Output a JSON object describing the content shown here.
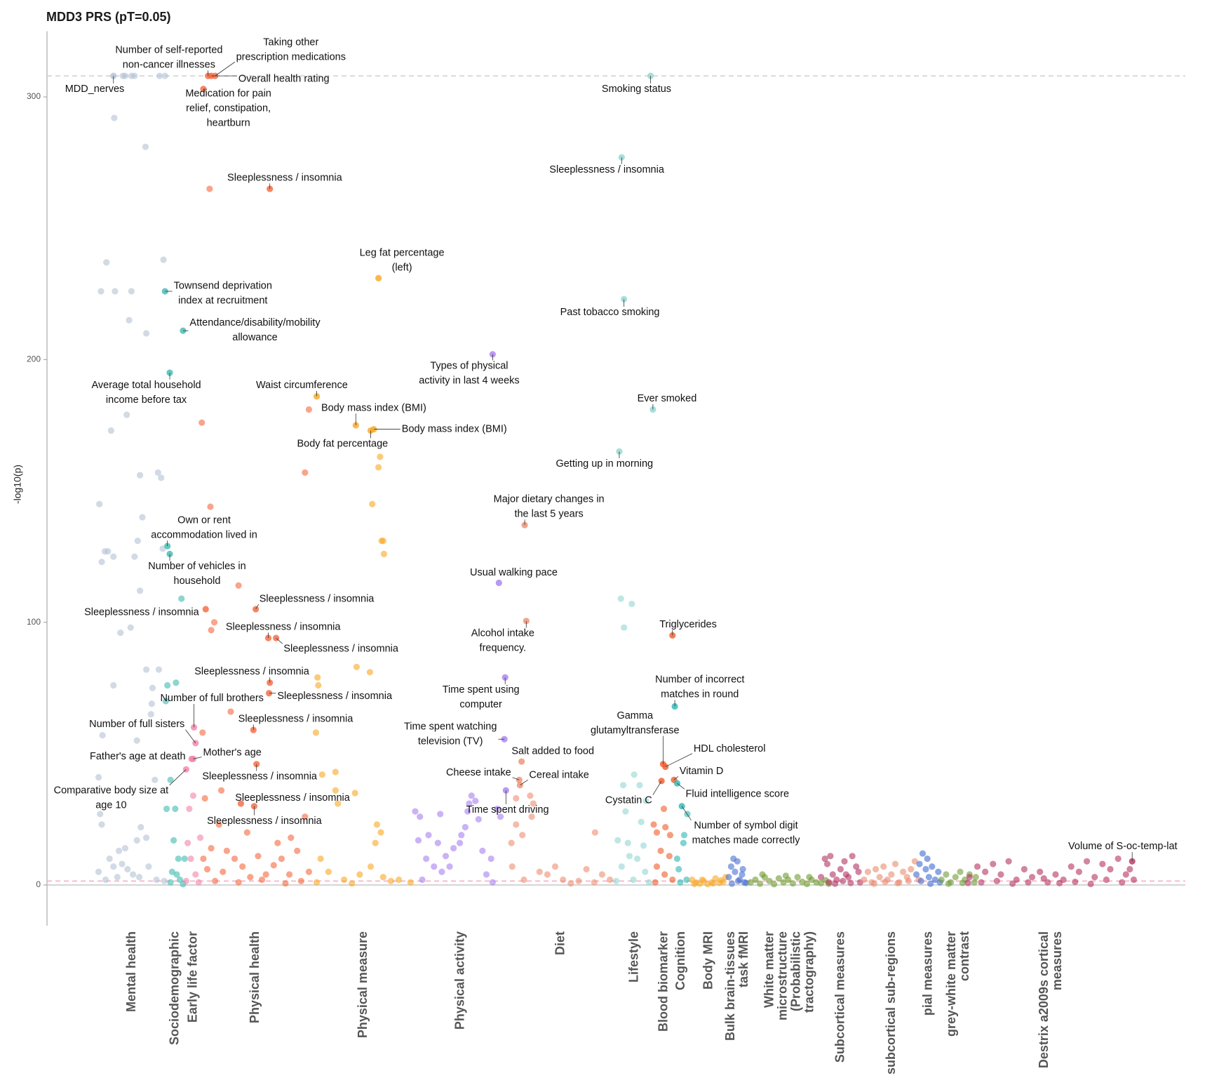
{
  "chart_data": {
    "type": "scatter",
    "title": "MDD3 PRS (pT=0.05)",
    "y_label": "-log10(p)",
    "xlim": [
      0,
      1456
    ],
    "ylim": [
      -15.5,
      325
    ],
    "yticks": [
      0,
      100,
      200,
      300
    ],
    "reference_lines": [
      {
        "value": 308,
        "color": "#cfcfcf",
        "style": "dashed"
      },
      {
        "value": 1.5,
        "color": "#f6a9c0",
        "style": "dashed"
      },
      {
        "value": 0,
        "color": "#bdbdbd",
        "style": "solid"
      }
    ],
    "series": [
      {
        "name": "Mental health",
        "color": "#b2c2d4",
        "labeled": {
          "x": [
            85
          ],
          "values": [
            308
          ],
          "labels": [
            "MDD_nerves"
          ]
        },
        "x": [
          97,
          100,
          108,
          112,
          144,
          151,
          86,
          126,
          76,
          149,
          69,
          87,
          108,
          105,
          127,
          102,
          82,
          119,
          142,
          146,
          67,
          122,
          116,
          74,
          78,
          70,
          85,
          112,
          148,
          119,
          107,
          94,
          127,
          143,
          85,
          135,
          134,
          133,
          71,
          115,
          66,
          138,
          68,
          70,
          120,
          127,
          115,
          92,
          100,
          80,
          85,
          66,
          103,
          130,
          75,
          90,
          118,
          140,
          150,
          96,
          110
        ],
        "values": [
          308,
          308,
          308,
          308,
          308,
          308,
          292,
          281,
          237,
          238,
          226,
          226,
          226,
          215,
          210,
          179,
          173,
          156,
          157,
          155,
          145,
          140,
          131,
          127,
          127,
          123,
          125,
          125,
          128,
          112,
          98,
          96,
          82,
          82,
          76,
          75,
          69,
          65,
          57,
          55,
          41,
          40,
          27,
          23,
          22,
          18,
          17,
          13,
          14,
          10,
          7,
          5,
          6,
          7,
          2,
          3,
          3,
          2,
          1.5,
          8,
          4
        ]
      },
      {
        "name": "Sociodemographic",
        "color": "#3fbab0",
        "labeled": {
          "x": [
            151,
            174,
            157,
            154,
            157
          ],
          "values": [
            226,
            211,
            195,
            129,
            126
          ],
          "labels": [
            "Townsend deprivation\nindex at recruitment",
            "Attendance/disability/mobility\nallowance",
            "Average total household\nincome before tax",
            "Own or rent\naccommodation lived in",
            "Number of vehicles in\nhousehold"
          ]
        },
        "x": [
          172,
          165,
          154,
          152,
          158,
          153,
          164,
          162,
          168,
          176,
          160,
          170,
          158,
          174,
          166
        ],
        "values": [
          109,
          77,
          76,
          70,
          40,
          29,
          29,
          17,
          10,
          10,
          5,
          2,
          1,
          0.3,
          4
        ]
      },
      {
        "name": "Early life factor",
        "color": "#f283a8",
        "labeled": {
          "x": [
            188,
            190,
            187,
            185,
            178
          ],
          "values": [
            60,
            54,
            48,
            48,
            44
          ],
          "labels": [
            "Number of full brothers",
            "Number of full sisters",
            "Mother's age",
            "Father's age at death",
            "Comparative body size at\nage 10"
          ]
        },
        "x": [
          187,
          182,
          180,
          196,
          184,
          190,
          178,
          194
        ],
        "values": [
          34,
          29,
          16,
          18,
          10,
          4,
          1.5,
          1
        ]
      },
      {
        "name": "Physical health",
        "color": "#f5673d",
        "labeled": {
          "x": [
            206,
            215,
            210,
            200,
            285,
            203,
            267,
            283,
            293,
            285,
            284,
            264,
            268,
            248,
            265
          ],
          "values": [
            308,
            308,
            308,
            303,
            265,
            105,
            105,
            94,
            94,
            77,
            73,
            59,
            46,
            31,
            30
          ],
          "labels": [
            "Number of self-reported\nnon-cancer illnesses",
            "Taking other\nprescription medications",
            "Overall health rating",
            "Medication for pain\nrelief, constipation,\nheartburn",
            "Sleeplessness / insomnia",
            "Sleeplessness / insomnia",
            "Sleeplessness / insomnia",
            "Sleeplessness / insomnia",
            "Sleeplessness / insomnia",
            "Sleeplessness / insomnia",
            "Sleeplessness / insomnia",
            "Sleeplessness / insomnia",
            "Sleeplessness / insomnia",
            "Sleeplessness / insomnia",
            "Sleeplessness / insomnia"
          ]
        },
        "x": [
          208,
          198,
          209,
          335,
          330,
          245,
          214,
          210,
          199,
          235,
          223,
          202,
          330,
          220,
          256,
          295,
          312,
          210,
          230,
          240,
          270,
          300,
          320,
          205,
          225,
          250,
          280,
          310,
          335,
          215,
          245,
          275,
          305,
          325,
          260,
          290,
          200
        ],
        "values": [
          265,
          176,
          144,
          181,
          157,
          114,
          100,
          97,
          58,
          66,
          36,
          33,
          26,
          23,
          20,
          16,
          18,
          14,
          13,
          10,
          11,
          10,
          13,
          6,
          5,
          7,
          4,
          4,
          5,
          1.5,
          1,
          2,
          0.6,
          1.5,
          3,
          7.5,
          10
        ]
      },
      {
        "name": "Physical measure",
        "color": "#f8a823",
        "labeled": {
          "x": [
            424,
            345,
            395,
            418,
            414
          ],
          "values": [
            231,
            186,
            175,
            173.5,
            173
          ],
          "labels": [
            "Leg fat percentage\n(left)",
            "Waist circumference",
            "Body mass index (BMI)",
            "Body mass index (BMI)",
            "Body fat percentage"
          ]
        },
        "x": [
          426,
          424,
          416,
          428,
          430,
          431,
          396,
          413,
          346,
          347,
          344,
          369,
          352,
          369,
          394,
          372,
          422,
          427,
          420,
          414,
          350,
          360,
          380,
          400,
          440,
          450,
          465,
          345,
          390,
          430
        ],
        "values": [
          163,
          159,
          145,
          131,
          131,
          126,
          83,
          81,
          79,
          76,
          58,
          43,
          42,
          36,
          35,
          31,
          23,
          20,
          16,
          7,
          10,
          5,
          2,
          4,
          1.5,
          2,
          1,
          1,
          0.6,
          3
        ]
      },
      {
        "name": "Physical activity",
        "color": "#a87ff0",
        "labeled": {
          "x": [
            570,
            578,
            586,
            585,
            587
          ],
          "values": [
            202,
            115,
            79,
            55.5,
            36
          ],
          "labels": [
            "Types of physical\nactivity in last 4 weeks",
            "Usual walking pace",
            "Time spent using\ncomputer",
            "Time spent watching\ntelevision (TV)",
            "Time spent driving"
          ]
        },
        "x": [
          471,
          477,
          503,
          488,
          500,
          475,
          485,
          495,
          510,
          520,
          528,
          535,
          540,
          543,
          548,
          552,
          557,
          562,
          570,
          515,
          480,
          505,
          530,
          538,
          576,
          580,
          568
        ],
        "values": [
          28,
          26,
          27,
          19,
          16,
          17,
          10,
          7,
          11,
          14,
          16,
          22,
          31,
          34,
          32,
          25,
          13,
          4,
          1,
          7,
          2,
          5,
          19,
          28,
          29,
          26,
          10
        ]
      },
      {
        "name": "Diet",
        "color": "#ef8e72",
        "labeled": {
          "x": [
            611,
            613,
            607,
            604,
            605
          ],
          "values": [
            137,
            100.5,
            47,
            40,
            38
          ],
          "labels": [
            "Major dietary changes in\nthe last 5 years",
            "Alcohol intake\nfrequency.",
            "Salt added to food",
            "Cheese intake",
            "Cereal intake"
          ]
        },
        "x": [
          600,
          618,
          622,
          620,
          600,
          608,
          594,
          701,
          630,
          640,
          660,
          680,
          700,
          720,
          690,
          650,
          670,
          710,
          595,
          610
        ],
        "values": [
          33,
          34,
          31,
          26,
          23,
          19,
          16,
          20,
          5,
          4,
          2,
          1.5,
          1,
          2,
          6,
          7,
          0.6,
          4,
          7,
          2
        ]
      },
      {
        "name": "Lifestyle",
        "color": "#92d6d2",
        "labeled": {
          "x": [
            772,
            735,
            738,
            775,
            732
          ],
          "values": [
            308,
            277,
            223,
            181,
            165
          ],
          "labels": [
            "Smoking status",
            "Sleeplessness / insomnia",
            "Past tobacco smoking",
            "Ever smoked",
            "Getting up in morning"
          ]
        },
        "x": [
          734,
          748,
          738,
          751,
          737,
          758,
          766,
          740,
          760,
          730,
          743,
          763,
          745,
          755,
          735,
          765,
          750,
          728,
          770
        ],
        "values": [
          109,
          107,
          98,
          42,
          38,
          38,
          32,
          28,
          24,
          17,
          16,
          15,
          11,
          10,
          7,
          5,
          2,
          1.5,
          1
        ]
      },
      {
        "name": "Blood biomarker",
        "color": "#f05c2b",
        "labeled": {
          "x": [
            800,
            788,
            791,
            802,
            786
          ],
          "values": [
            95,
            46,
            45,
            40,
            39.6
          ],
          "labels": [
            "Triglycerides",
            "Gamma\nglutamyltransferase",
            "HDL cholesterol",
            "Vitamin D",
            "Cystatin C"
          ]
        },
        "x": [
          789,
          776,
          791,
          780,
          797,
          785,
          796,
          780,
          790,
          800,
          778
        ],
        "values": [
          29,
          23,
          22,
          20,
          19,
          13,
          11,
          7,
          4,
          2,
          1
        ]
      },
      {
        "name": "Cognition",
        "color": "#2db6b4",
        "labeled": {
          "x": [
            803,
            806,
            812
          ],
          "values": [
            68,
            38.7,
            30
          ],
          "labels": [
            "Number of incorrect\nmatches in round",
            "Fluid intelligence score",
            "Number of symbol digit\nmatches made correctly"
          ]
        },
        "x": [
          819,
          815,
          806,
          814,
          808,
          818,
          810
        ],
        "values": [
          27,
          19,
          10,
          16,
          6,
          2,
          1
        ]
      },
      {
        "name": "Body MRI",
        "color": "#f7a928",
        "x": [
          825,
          830,
          835,
          840,
          845,
          850,
          855,
          860,
          865,
          828,
          838,
          852,
          862,
          868
        ],
        "values": [
          2,
          1,
          0.5,
          1.5,
          0.3,
          1,
          2.5,
          0.8,
          1.2,
          0.4,
          2,
          0.6,
          1.8,
          3
        ]
      },
      {
        "name": "Bulk brain-tissues\ntask fMRI",
        "color": "#4a6fd0",
        "x": [
          872,
          875,
          878,
          880,
          883,
          886,
          889,
          892,
          876,
          884,
          890,
          894
        ],
        "values": [
          3,
          7,
          10,
          5,
          9,
          2,
          4,
          1,
          0.5,
          1.5,
          6,
          0.8
        ]
      },
      {
        "name": "White matter\nmicrostructure\n(Probabilistic\ntractography)",
        "color": "#6e9b2e",
        "x": [
          900,
          906,
          912,
          918,
          924,
          930,
          936,
          942,
          948,
          954,
          960,
          966,
          972,
          978,
          984,
          990,
          996,
          1000,
          915,
          945,
          975
        ],
        "values": [
          1,
          2,
          0.5,
          3,
          1.5,
          0.3,
          2.5,
          1,
          2,
          0.6,
          3,
          1.2,
          0.4,
          2,
          1,
          0.7,
          1.8,
          0.5,
          4,
          3.5,
          3
        ]
      },
      {
        "name": "Subcortical measures",
        "color": "#b23462",
        "x": [
          990,
          995,
          998,
          1002,
          1005,
          1010,
          1015,
          1020,
          1025,
          1030,
          1035,
          1040,
          1008,
          1018,
          1028,
          1038,
          1000,
          1022
        ],
        "values": [
          3,
          10,
          8,
          11,
          4,
          2,
          6,
          9,
          3,
          11,
          7,
          1,
          0.5,
          1.5,
          0.8,
          5,
          1,
          4
        ]
      },
      {
        "name": "subcortical sub-regions",
        "color": "#ea8c70",
        "x": [
          1045,
          1050,
          1055,
          1060,
          1065,
          1070,
          1075,
          1080,
          1085,
          1090,
          1095,
          1100,
          1105,
          1110,
          1115,
          1058,
          1072,
          1088,
          1102
        ],
        "values": [
          2,
          5,
          1,
          6,
          3,
          7,
          2,
          4,
          8,
          1,
          5,
          3,
          6,
          9,
          2,
          0.5,
          1.2,
          0.7,
          1.5
        ]
      },
      {
        "name": "pial measures",
        "color": "#3f6bd2",
        "x": [
          1112,
          1116,
          1120,
          1124,
          1128,
          1132,
          1136,
          1140,
          1142,
          1118,
          1130,
          1126
        ],
        "values": [
          4,
          8,
          12,
          6,
          3,
          7,
          2,
          5,
          1,
          1.5,
          0.5,
          10
        ]
      },
      {
        "name": "grey-white matter\ncontrast",
        "color": "#6e9d38",
        "x": [
          1144,
          1150,
          1156,
          1162,
          1168,
          1174,
          1180,
          1186,
          1188,
          1153,
          1171
        ],
        "values": [
          2,
          4,
          1,
          3,
          5,
          2,
          4,
          1,
          3,
          0.5,
          0.8
        ]
      },
      {
        "name": "Destrix a2009s cortical\nmeasures",
        "color": "#b63260",
        "labeled": {
          "x": [
            1388
          ],
          "values": [
            9
          ],
          "labels": [
            "Volume of S-oc-temp-lat"
          ]
        },
        "x": [
          1180,
          1190,
          1200,
          1210,
          1220,
          1230,
          1240,
          1250,
          1260,
          1270,
          1280,
          1290,
          1300,
          1310,
          1320,
          1330,
          1340,
          1350,
          1360,
          1370,
          1380,
          1390,
          1195,
          1215,
          1235,
          1255,
          1275,
          1295,
          1315,
          1335,
          1355,
          1375,
          1385,
          1178
        ],
        "values": [
          3,
          7,
          5,
          8,
          4,
          9,
          2,
          6,
          3,
          5,
          1,
          4,
          2,
          7,
          5,
          9,
          3,
          8,
          6,
          10,
          4,
          2,
          1,
          1.5,
          0.5,
          1,
          2.5,
          0.7,
          1.2,
          0.4,
          2,
          1,
          6,
          0.8
        ]
      }
    ]
  }
}
